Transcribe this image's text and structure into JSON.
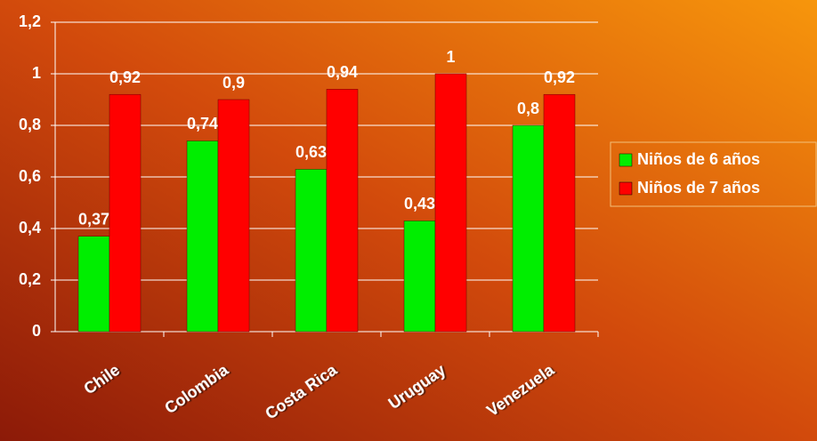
{
  "chart_data": {
    "type": "bar",
    "categories": [
      "Chile",
      "Colombia",
      "Costa Rica",
      "Uruguay",
      "Venezuela"
    ],
    "series": [
      {
        "name": "Niños de 6 años",
        "color": "#00ee00",
        "values": [
          0.37,
          0.74,
          0.63,
          0.43,
          0.8
        ],
        "value_labels": [
          "0,37",
          "0,74",
          "0,63",
          "0,43",
          "0,8"
        ]
      },
      {
        "name": "Niños de 7 años",
        "color": "#ff0000",
        "values": [
          0.92,
          0.9,
          0.94,
          1,
          0.92
        ],
        "value_labels": [
          "0,92",
          "0,9",
          "0,94",
          "1",
          "0,92"
        ]
      }
    ],
    "ylim": [
      0,
      1.2
    ],
    "yticks": [
      0,
      {
        "value": 0.2,
        "label": "0,2"
      },
      {
        "value": 0.4,
        "label": "0,4"
      },
      {
        "value": 0.6,
        "label": "0,6"
      },
      {
        "value": 0.8,
        "label": "0,8"
      },
      1,
      {
        "value": 1.2,
        "label": "1,2"
      }
    ],
    "grid": true,
    "legend": "right"
  }
}
